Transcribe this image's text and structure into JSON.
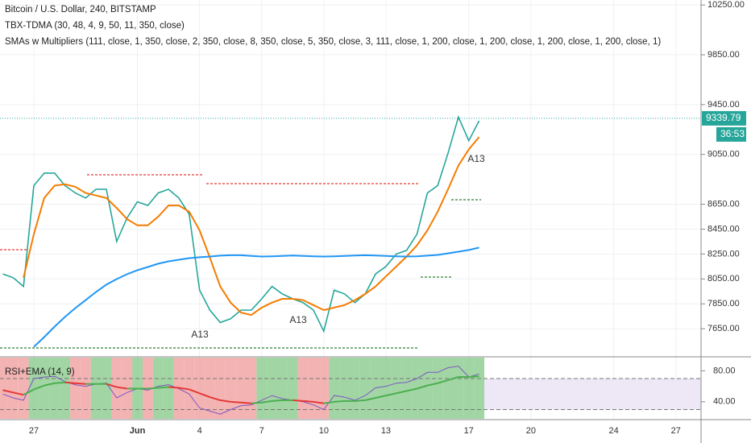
{
  "chart_data": [
    {
      "type": "line",
      "title": "Bitcoin / U.S. Dollar, 240, BITSTAMP",
      "subtitle": "TBX-TDMA (30, 48, 4, 9, 50, 11, 350, close)",
      "indicator": "SMAs w Multipliers (111, close, 1, 350, close, 2, 350, close, 8, 350, close, 5, 350, close, 3, 111, close, 1, 200, close, 1, 200, close, 1, 200, close, 1, 200, close, 1)",
      "annotations": [
        "A13",
        "A13",
        "A13"
      ],
      "last_price": 9339.79,
      "countdown": "36:53",
      "categories": [
        null,
        null,
        null,
        "27",
        null,
        null,
        null,
        null,
        null,
        null,
        null,
        null,
        null,
        "Jun",
        null,
        null,
        null,
        null,
        null,
        "4",
        null,
        null,
        null,
        null,
        null,
        "7",
        null,
        null,
        null,
        null,
        null,
        "10",
        null,
        null,
        null,
        null,
        null,
        "13",
        null,
        null,
        null,
        null,
        null,
        null,
        null,
        "17",
        null,
        null,
        null,
        null,
        null,
        "20",
        null,
        null,
        null,
        null,
        null,
        null,
        null,
        "24",
        null,
        null,
        null,
        null,
        null,
        "27",
        null
      ],
      "series": [
        {
          "color": "#26a69a",
          "values": [
            8090,
            8060,
            7990,
            8800,
            8900,
            8900,
            8800,
            8740,
            8700,
            8770,
            8770,
            8350,
            8540,
            8670,
            8640,
            8740,
            8770,
            8700,
            8570,
            7960,
            7800,
            7700,
            7730,
            7800,
            7800,
            7890,
            7990,
            7930,
            7890,
            7860,
            7800,
            7630,
            7960,
            7930,
            7860,
            7930,
            8090,
            8150,
            8250,
            8280,
            8410,
            8740,
            8800,
            9060,
            9350,
            9160,
            9320,
            null,
            null,
            null,
            null,
            null,
            null,
            null,
            null,
            null,
            null,
            null,
            null,
            null,
            null,
            null,
            null,
            null,
            null,
            null,
            null
          ]
        },
        {
          "color": "#f57c00",
          "values": [
            null,
            null,
            8060,
            8410,
            8700,
            8800,
            8810,
            8790,
            8740,
            8720,
            8700,
            8620,
            8530,
            8480,
            8480,
            8550,
            8640,
            8640,
            8590,
            8440,
            8220,
            7990,
            7860,
            7780,
            7760,
            7820,
            7860,
            7890,
            7890,
            7880,
            7840,
            7800,
            7820,
            7840,
            7880,
            7930,
            7990,
            8070,
            8150,
            8230,
            8320,
            8440,
            8590,
            8770,
            8960,
            9090,
            9190,
            null,
            null,
            null,
            null,
            null,
            null,
            null,
            null,
            null,
            null,
            null,
            null,
            null,
            null,
            null,
            null,
            null,
            null,
            null,
            null
          ]
        },
        {
          "color": "#2196f3",
          "values": [
            null,
            null,
            null,
            7505,
            7583,
            7667,
            7745,
            7816,
            7880,
            7945,
            8004,
            8049,
            8088,
            8120,
            8146,
            8172,
            8191,
            8204,
            8217,
            8224,
            8230,
            8237,
            8240,
            8240,
            8235,
            8230,
            8232,
            8235,
            8238,
            8235,
            8232,
            8230,
            8232,
            8235,
            8238,
            8240,
            8238,
            8235,
            8232,
            8230,
            8232,
            8237,
            8243,
            8256,
            8269,
            8282,
            8302,
            null,
            null,
            null,
            null,
            null,
            null,
            null,
            null,
            null,
            null,
            null,
            null,
            null,
            null,
            null,
            null,
            null,
            null,
            null,
            null
          ]
        }
      ],
      "ylim": [
        7444,
        10290
      ],
      "yticks": [
        {
          "value": 10250,
          "label": "10250.00"
        },
        {
          "value": 9850,
          "label": "9850.00"
        },
        {
          "value": 9450,
          "label": "9450.00"
        },
        {
          "value": 9050,
          "label": "9050.00"
        },
        {
          "value": 8650,
          "label": "8650.00"
        },
        {
          "value": 8450,
          "label": "8450.00"
        },
        {
          "value": 8250,
          "label": "8250.00"
        },
        {
          "value": 8050,
          "label": "8050.00"
        },
        {
          "value": 7850,
          "label": "7850.00"
        },
        {
          "value": 7650,
          "label": "7650.00"
        }
      ],
      "grid": true
    },
    {
      "type": "rsi",
      "title": "RSI+EMA (14, 9)",
      "series": [
        {
          "color": "#7e57c2",
          "values": [
            50,
            45,
            42,
            70,
            72,
            73,
            66,
            62,
            60,
            63,
            64,
            45,
            52,
            57,
            55,
            60,
            62,
            57,
            50,
            32,
            28,
            24,
            30,
            35,
            36,
            42,
            48,
            44,
            42,
            40,
            36,
            30,
            48,
            46,
            42,
            48,
            58,
            60,
            64,
            65,
            70,
            78,
            78,
            84,
            86,
            72,
            76,
            null,
            null,
            null,
            null,
            null,
            null,
            null,
            null,
            null,
            null,
            null,
            null,
            null,
            null,
            null,
            null,
            null,
            null,
            null,
            null
          ]
        },
        {
          "color": "#4caf50",
          "down_color": "#e53935",
          "values": [
            55,
            52,
            49,
            56,
            61,
            64,
            65,
            64,
            63,
            63,
            63,
            59,
            57,
            57,
            57,
            58,
            59,
            58,
            56,
            51,
            46,
            42,
            40,
            39,
            38,
            39,
            41,
            42,
            42,
            41,
            40,
            38,
            40,
            41,
            41,
            42,
            45,
            48,
            51,
            54,
            57,
            61,
            64,
            68,
            72,
            72,
            73,
            null,
            null,
            null,
            null,
            null,
            null,
            null,
            null,
            null,
            null,
            null,
            null,
            null,
            null,
            null,
            null,
            null,
            null,
            null,
            null
          ]
        }
      ],
      "band_colors": [
        "#81c784",
        "#ef9a9a"
      ],
      "hlines": [
        70,
        30
      ],
      "ylim": [
        18,
        97
      ],
      "yticks": [
        {
          "value": 80,
          "label": "80.00"
        },
        {
          "value": 40,
          "label": "40.00"
        }
      ]
    }
  ]
}
